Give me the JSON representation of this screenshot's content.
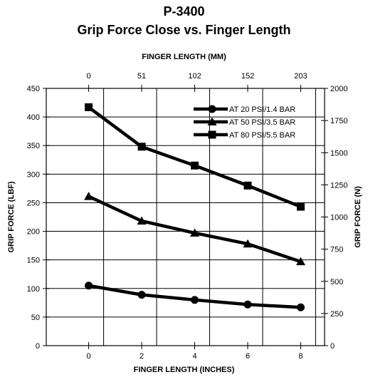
{
  "chart_data": {
    "type": "line",
    "title": "P-3400",
    "subtitle": "Grip Force Close vs. Finger Length",
    "xlabel": "FINGER LENGTH (INCHES)",
    "x2label": "FINGER LENGTH (MM)",
    "ylabel": "GRIP FORCE (LBF)",
    "y2label": "GRIP FORCE (N)",
    "xlim": [
      -1.6,
      8.9
    ],
    "ylim": [
      0,
      450
    ],
    "y2lim": [
      0,
      2000
    ],
    "xticks": [
      0,
      2,
      4,
      6,
      8
    ],
    "xtick_labels": [
      "0",
      "2",
      "4",
      "6",
      "8"
    ],
    "x2ticks": [
      0,
      2,
      4,
      6,
      8
    ],
    "x2tick_labels": [
      "0",
      "51",
      "102",
      "152",
      "203"
    ],
    "yticks": [
      0,
      50,
      100,
      150,
      200,
      250,
      300,
      350,
      400,
      450
    ],
    "ytick_labels": [
      "0",
      "50",
      "100",
      "150",
      "200",
      "250",
      "300",
      "350",
      "400",
      "450"
    ],
    "y2ticks": [
      0,
      250,
      500,
      750,
      1000,
      1250,
      1500,
      1750,
      2000
    ],
    "y2tick_labels": [
      "0",
      "250",
      "500",
      "750",
      "1000",
      "1250",
      "1500",
      "1750",
      "2000"
    ],
    "grid": true,
    "legend_position": "top-right",
    "x": [
      0,
      2,
      4,
      6,
      8
    ],
    "series": [
      {
        "name": "AT 20 PSI/1.4 BAR",
        "marker": "circle",
        "values": [
          105,
          89,
          80,
          72,
          67
        ]
      },
      {
        "name": "AT 50 PSI/3.5 BAR",
        "marker": "triangle",
        "values": [
          261,
          218,
          197,
          178,
          147
        ]
      },
      {
        "name": "AT 80 PSI/5.5 BAR",
        "marker": "square",
        "values": [
          417,
          348,
          315,
          280,
          243
        ]
      }
    ],
    "line_color": "#000000"
  }
}
